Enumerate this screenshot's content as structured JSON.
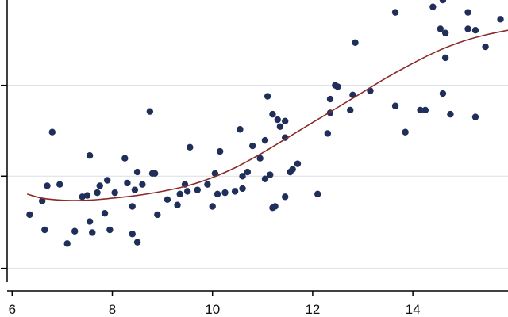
{
  "chart_data": {
    "type": "scatter",
    "title": "",
    "xlabel": "",
    "ylabel": "",
    "xlim": [
      5.9,
      15.9
    ],
    "ylim": [
      -0.1,
      1.95
    ],
    "x_ticks": [
      6,
      8,
      10,
      12,
      14
    ],
    "x_tick_labels": [
      "6",
      "8",
      "10",
      "12",
      "14"
    ],
    "y_ticks": [
      0,
      0.67,
      1.33
    ],
    "gridlines": "horizontal",
    "colors": {
      "points": "#1f2f5a",
      "fit_line": "#8b2a2a",
      "grid": "#d9dfe6",
      "axis": "#000000"
    },
    "series": [
      {
        "type": "scatter",
        "points": [
          [
            6.35,
            0.39
          ],
          [
            6.6,
            0.49
          ],
          [
            6.65,
            0.28
          ],
          [
            6.7,
            0.6
          ],
          [
            6.8,
            0.99
          ],
          [
            6.95,
            0.61
          ],
          [
            7.1,
            0.18
          ],
          [
            7.25,
            0.27
          ],
          [
            7.4,
            0.52
          ],
          [
            7.5,
            0.53
          ],
          [
            7.55,
            0.34
          ],
          [
            7.55,
            0.82
          ],
          [
            7.6,
            0.26
          ],
          [
            7.7,
            0.55
          ],
          [
            7.75,
            0.6
          ],
          [
            7.85,
            0.4
          ],
          [
            7.9,
            0.64
          ],
          [
            7.95,
            0.28
          ],
          [
            8.05,
            0.55
          ],
          [
            8.25,
            0.8
          ],
          [
            8.3,
            0.62
          ],
          [
            8.4,
            0.45
          ],
          [
            8.4,
            0.25
          ],
          [
            8.45,
            0.57
          ],
          [
            8.5,
            0.19
          ],
          [
            8.5,
            0.7
          ],
          [
            8.6,
            0.61
          ],
          [
            8.8,
            0.69
          ],
          [
            8.85,
            0.69
          ],
          [
            8.75,
            1.14
          ],
          [
            8.9,
            0.39
          ],
          [
            9.1,
            0.5
          ],
          [
            9.3,
            0.46
          ],
          [
            9.35,
            0.54
          ],
          [
            9.5,
            0.56
          ],
          [
            9.45,
            0.61
          ],
          [
            9.55,
            0.88
          ],
          [
            9.7,
            0.57
          ],
          [
            9.9,
            0.61
          ],
          [
            10.0,
            0.45
          ],
          [
            10.05,
            0.69
          ],
          [
            10.1,
            0.54
          ],
          [
            10.15,
            0.85
          ],
          [
            10.25,
            0.55
          ],
          [
            10.45,
            0.56
          ],
          [
            10.6,
            0.58
          ],
          [
            10.6,
            0.67
          ],
          [
            10.55,
            1.01
          ],
          [
            10.7,
            0.7
          ],
          [
            10.8,
            0.89
          ],
          [
            10.95,
            0.8
          ],
          [
            11.05,
            0.65
          ],
          [
            11.05,
            0.93
          ],
          [
            11.15,
            0.68
          ],
          [
            11.2,
            0.44
          ],
          [
            11.25,
            0.45
          ],
          [
            11.1,
            1.25
          ],
          [
            11.2,
            1.12
          ],
          [
            11.35,
            1.03
          ],
          [
            11.3,
            1.08
          ],
          [
            11.45,
            0.95
          ],
          [
            11.45,
            1.07
          ],
          [
            11.45,
            0.52
          ],
          [
            11.55,
            0.7
          ],
          [
            11.6,
            0.72
          ],
          [
            11.7,
            0.76
          ],
          [
            12.1,
            0.54
          ],
          [
            12.3,
            0.98
          ],
          [
            12.35,
            1.23
          ],
          [
            12.35,
            1.13
          ],
          [
            12.45,
            1.33
          ],
          [
            12.5,
            1.32
          ],
          [
            12.75,
            1.15
          ],
          [
            12.8,
            1.26
          ],
          [
            12.85,
            1.64
          ],
          [
            13.15,
            1.29
          ],
          [
            13.65,
            1.18
          ],
          [
            13.65,
            1.86
          ],
          [
            13.85,
            0.99
          ],
          [
            14.15,
            1.15
          ],
          [
            14.25,
            1.15
          ],
          [
            14.4,
            1.9
          ],
          [
            14.55,
            1.74
          ],
          [
            14.6,
            1.95
          ],
          [
            14.6,
            1.27
          ],
          [
            14.65,
            1.53
          ],
          [
            14.75,
            1.12
          ],
          [
            14.65,
            1.71
          ],
          [
            15.1,
            1.86
          ],
          [
            15.1,
            1.74
          ],
          [
            15.25,
            1.73
          ],
          [
            15.25,
            1.1
          ],
          [
            15.45,
            1.61
          ],
          [
            15.75,
            1.81
          ]
        ]
      },
      {
        "type": "line",
        "points": [
          [
            6.3,
            0.54
          ],
          [
            6.6,
            0.51
          ],
          [
            7.0,
            0.495
          ],
          [
            7.5,
            0.495
          ],
          [
            8.0,
            0.51
          ],
          [
            8.5,
            0.53
          ],
          [
            9.0,
            0.56
          ],
          [
            9.5,
            0.6
          ],
          [
            10.0,
            0.66
          ],
          [
            10.5,
            0.74
          ],
          [
            11.0,
            0.84
          ],
          [
            11.5,
            0.95
          ],
          [
            12.0,
            1.06
          ],
          [
            12.5,
            1.17
          ],
          [
            13.0,
            1.28
          ],
          [
            13.5,
            1.39
          ],
          [
            14.0,
            1.49
          ],
          [
            14.5,
            1.58
          ],
          [
            15.0,
            1.65
          ],
          [
            15.5,
            1.7
          ],
          [
            15.9,
            1.73
          ]
        ]
      }
    ]
  }
}
